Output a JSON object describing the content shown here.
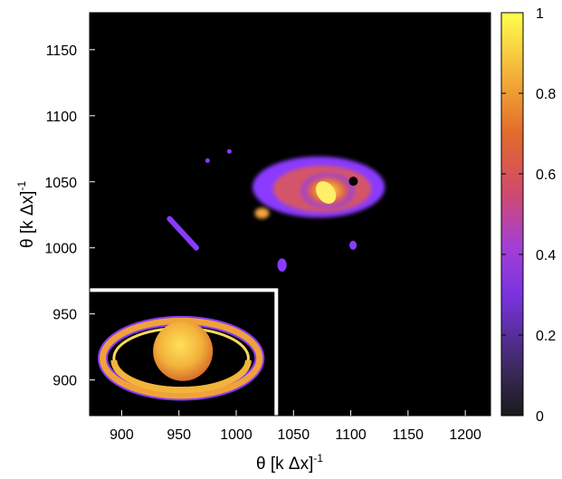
{
  "chart_data": {
    "type": "heatmap",
    "title": "",
    "xlabel": "θ [k Δx]⁻¹",
    "ylabel": "θ [k Δx]⁻¹",
    "xlabel_parts": {
      "base": "θ [k Δx]",
      "exp": "-1"
    },
    "ylabel_parts": {
      "base": "θ [k Δx]",
      "exp": "-1"
    },
    "xlim": [
      872,
      1222
    ],
    "ylim": [
      873,
      1178
    ],
    "x_ticks": [
      900,
      950,
      1000,
      1050,
      1100,
      1150,
      1200
    ],
    "y_ticks": [
      900,
      950,
      1000,
      1050,
      1100,
      1150
    ],
    "colorbar": {
      "range": [
        0,
        1
      ],
      "ticks": [
        0,
        0.2,
        0.4,
        0.6,
        0.8,
        1
      ],
      "tick_labels": [
        "0",
        "0.2",
        "0.4",
        "0.6",
        "0.8",
        "1"
      ],
      "colormap": [
        "#1a1a1a",
        "#5b2d8e",
        "#8a3bff",
        "#c4458a",
        "#e36a2a",
        "#f3b43a",
        "#ffff4d"
      ]
    },
    "background_color": "#000000",
    "regions": [
      {
        "name": "main-reconstruction",
        "center": [
          1072,
          1046
        ],
        "rx": 55,
        "ry": 22,
        "peak_value": 0.85
      },
      {
        "name": "left-streak",
        "center": [
          958,
          1010
        ],
        "rx": 18,
        "ry": 4,
        "peak_value": 0.35
      },
      {
        "name": "small-blob-lower",
        "center": [
          1040,
          987
        ],
        "rx": 4,
        "ry": 5,
        "peak_value": 0.3
      },
      {
        "name": "small-blob-right",
        "center": [
          1102,
          1002
        ],
        "rx": 3,
        "ry": 3,
        "peak_value": 0.3
      }
    ],
    "inset": {
      "description": "Ringed planet reference image (inset)",
      "xlim": [
        872,
        1035
      ],
      "ylim": [
        873,
        968
      ],
      "border_color": "#ffffff"
    }
  }
}
